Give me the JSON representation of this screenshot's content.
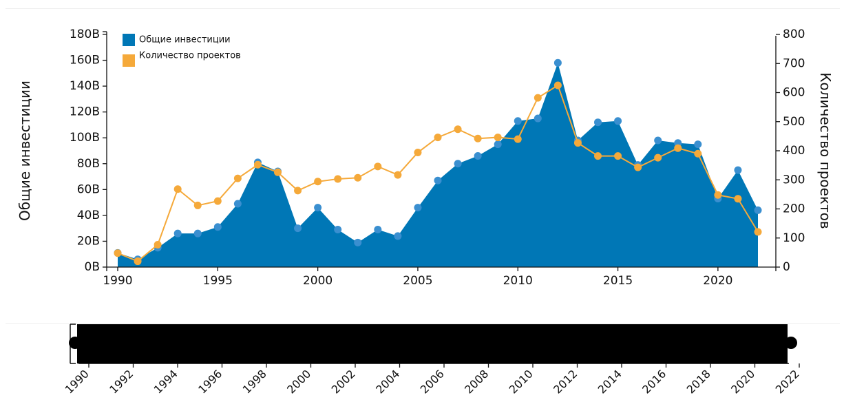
{
  "colors": {
    "investment": "#0077b6",
    "investment_dot": "#3a8fd0",
    "projects": "#f5a93a",
    "brush": "#000000"
  },
  "chart_data": {
    "type": "area",
    "x": [
      1990,
      1991,
      1992,
      1993,
      1994,
      1995,
      1996,
      1997,
      1998,
      1999,
      2000,
      2001,
      2002,
      2003,
      2004,
      2005,
      2006,
      2007,
      2008,
      2009,
      2010,
      2011,
      2012,
      2013,
      2014,
      2015,
      2016,
      2017,
      2018,
      2019,
      2020,
      2021,
      2022
    ],
    "series": [
      {
        "name": "Общие инвестиции",
        "type": "area",
        "axis": "left",
        "values": [
          11,
          6,
          15,
          26,
          26,
          31,
          49,
          81,
          74,
          30,
          46,
          29,
          19,
          29,
          24,
          46,
          67,
          80,
          86,
          95,
          113,
          115,
          158,
          98,
          112,
          113,
          79,
          98,
          96,
          95,
          53,
          75,
          44
        ]
      },
      {
        "name": "Количество проектов",
        "type": "line",
        "axis": "right",
        "values": [
          48,
          20,
          77,
          268,
          212,
          227,
          305,
          352,
          326,
          263,
          294,
          303,
          307,
          346,
          317,
          394,
          446,
          474,
          442,
          446,
          440,
          582,
          625,
          427,
          382,
          382,
          343,
          376,
          409,
          390,
          248,
          235,
          121
        ]
      }
    ],
    "xlim": [
      1990,
      2022
    ],
    "ylim_left": [
      0,
      180
    ],
    "ylim_right": [
      0,
      800
    ],
    "x_ticks": [
      "1990",
      "1995",
      "2000",
      "2005",
      "2010",
      "2015",
      "2020"
    ],
    "y_ticks_left": [
      "0B",
      "20B",
      "40B",
      "60B",
      "80B",
      "100B",
      "120B",
      "140B",
      "160B",
      "180B"
    ],
    "y_ticks_right": [
      "0",
      "100",
      "200",
      "300",
      "400",
      "500",
      "600",
      "700",
      "800"
    ],
    "ylabel_left": "Общие инвестиции",
    "ylabel_right": "Количество проектов",
    "legend": [
      "Общие инвестиции",
      "Количество проектов"
    ],
    "legend_position": "top-left",
    "grid": false
  },
  "brush": {
    "ticks": [
      "1990",
      "1992",
      "1994",
      "1996",
      "1998",
      "2000",
      "2002",
      "2004",
      "2006",
      "2008",
      "2010",
      "2012",
      "2014",
      "2016",
      "2018",
      "2020",
      "2022"
    ]
  }
}
